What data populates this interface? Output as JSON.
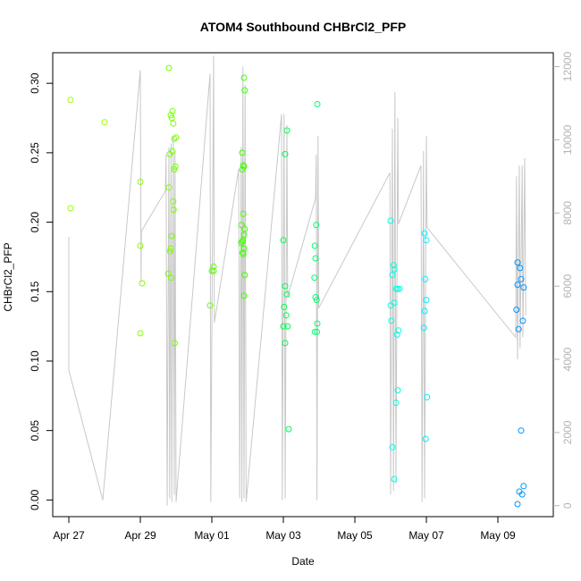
{
  "chart_data": {
    "type": "scatter",
    "title": "ATOM4 Southbound CHBrCl2_PFP",
    "xlabel": "Date",
    "ylabel": "CHBrCl2_PFP",
    "x_unit": "days since Apr 27",
    "xlim": [
      -0.45,
      13.55
    ],
    "ylim": [
      -0.012,
      0.322
    ],
    "y_ticks": [
      0.0,
      0.05,
      0.1,
      0.15,
      0.2,
      0.25,
      0.3
    ],
    "y_tick_labels": [
      "0.00",
      "0.05",
      "0.10",
      "0.15",
      "0.20",
      "0.25",
      "0.30"
    ],
    "x_ticks": [
      0,
      2,
      4,
      6,
      8,
      10,
      12
    ],
    "x_tick_labels": [
      "Apr 27",
      "Apr 29",
      "May 01",
      "May 03",
      "May 05",
      "May 07",
      "May 09"
    ],
    "y2_label": "",
    "y2lim": [
      -300,
      12380
    ],
    "y2_ticks": [
      0,
      2000,
      4000,
      6000,
      8000,
      10000,
      12000
    ],
    "y2_tick_labels": [
      "0",
      "2000",
      "4000",
      "6000",
      "8000",
      "10000",
      "12000"
    ],
    "point_series": {
      "name": "CHBrCl2_PFP",
      "points": [
        {
          "x": 0.05,
          "y": 0.288,
          "color": "#99ff00"
        },
        {
          "x": 0.05,
          "y": 0.21,
          "color": "#99ff00"
        },
        {
          "x": 1.0,
          "y": 0.272,
          "color": "#97ff00"
        },
        {
          "x": 2.0,
          "y": 0.229,
          "color": "#88ff00"
        },
        {
          "x": 2.0,
          "y": 0.183,
          "color": "#88ff00"
        },
        {
          "x": 2.05,
          "y": 0.156,
          "color": "#88ff00"
        },
        {
          "x": 2.0,
          "y": 0.12,
          "color": "#88ff00"
        },
        {
          "x": 2.8,
          "y": 0.311,
          "color": "#77ff00"
        },
        {
          "x": 2.85,
          "y": 0.277,
          "color": "#77ff00"
        },
        {
          "x": 2.9,
          "y": 0.28,
          "color": "#77ff00"
        },
        {
          "x": 2.88,
          "y": 0.275,
          "color": "#77ff00"
        },
        {
          "x": 2.92,
          "y": 0.271,
          "color": "#77ff00"
        },
        {
          "x": 2.95,
          "y": 0.26,
          "color": "#77ff00"
        },
        {
          "x": 3.0,
          "y": 0.261,
          "color": "#77ff00"
        },
        {
          "x": 2.9,
          "y": 0.251,
          "color": "#77ff00"
        },
        {
          "x": 2.82,
          "y": 0.249,
          "color": "#77ff00"
        },
        {
          "x": 2.98,
          "y": 0.24,
          "color": "#77ff00"
        },
        {
          "x": 2.95,
          "y": 0.238,
          "color": "#77ff00"
        },
        {
          "x": 2.8,
          "y": 0.225,
          "color": "#77ff00"
        },
        {
          "x": 2.92,
          "y": 0.215,
          "color": "#77ff00"
        },
        {
          "x": 2.93,
          "y": 0.209,
          "color": "#77ff00"
        },
        {
          "x": 2.88,
          "y": 0.19,
          "color": "#77ff00"
        },
        {
          "x": 2.85,
          "y": 0.181,
          "color": "#77ff00"
        },
        {
          "x": 2.83,
          "y": 0.179,
          "color": "#77ff00"
        },
        {
          "x": 2.78,
          "y": 0.163,
          "color": "#77ff00"
        },
        {
          "x": 2.86,
          "y": 0.16,
          "color": "#77ff00"
        },
        {
          "x": 2.96,
          "y": 0.113,
          "color": "#77ff00"
        },
        {
          "x": 4.05,
          "y": 0.168,
          "color": "#5eff00"
        },
        {
          "x": 4.0,
          "y": 0.165,
          "color": "#5eff00"
        },
        {
          "x": 4.05,
          "y": 0.165,
          "color": "#5eff00"
        },
        {
          "x": 3.95,
          "y": 0.14,
          "color": "#5eff00"
        },
        {
          "x": 4.9,
          "y": 0.304,
          "color": "#40ff00"
        },
        {
          "x": 4.92,
          "y": 0.295,
          "color": "#40ff00"
        },
        {
          "x": 4.85,
          "y": 0.25,
          "color": "#40ff00"
        },
        {
          "x": 4.88,
          "y": 0.241,
          "color": "#40ff00"
        },
        {
          "x": 4.85,
          "y": 0.238,
          "color": "#40ff00"
        },
        {
          "x": 4.9,
          "y": 0.24,
          "color": "#40ff00"
        },
        {
          "x": 4.88,
          "y": 0.206,
          "color": "#40ff00"
        },
        {
          "x": 4.83,
          "y": 0.198,
          "color": "#40ff00"
        },
        {
          "x": 4.92,
          "y": 0.195,
          "color": "#40ff00"
        },
        {
          "x": 4.9,
          "y": 0.191,
          "color": "#40ff00"
        },
        {
          "x": 4.87,
          "y": 0.187,
          "color": "#40ff00"
        },
        {
          "x": 4.85,
          "y": 0.186,
          "color": "#40ff00"
        },
        {
          "x": 4.82,
          "y": 0.185,
          "color": "#40ff00"
        },
        {
          "x": 4.9,
          "y": 0.181,
          "color": "#40ff00"
        },
        {
          "x": 4.86,
          "y": 0.178,
          "color": "#40ff00"
        },
        {
          "x": 4.88,
          "y": 0.177,
          "color": "#40ff00"
        },
        {
          "x": 4.92,
          "y": 0.162,
          "color": "#40ff00"
        },
        {
          "x": 4.9,
          "y": 0.147,
          "color": "#40ff00"
        },
        {
          "x": 6.1,
          "y": 0.266,
          "color": "#00ff4d"
        },
        {
          "x": 6.05,
          "y": 0.249,
          "color": "#00ff4d"
        },
        {
          "x": 6.0,
          "y": 0.187,
          "color": "#00ff4d"
        },
        {
          "x": 6.05,
          "y": 0.154,
          "color": "#00ff4d"
        },
        {
          "x": 6.1,
          "y": 0.148,
          "color": "#00ff4d"
        },
        {
          "x": 6.02,
          "y": 0.139,
          "color": "#00ff4d"
        },
        {
          "x": 6.08,
          "y": 0.133,
          "color": "#00ff4d"
        },
        {
          "x": 6.0,
          "y": 0.125,
          "color": "#00ff4d"
        },
        {
          "x": 6.12,
          "y": 0.125,
          "color": "#00ff4d"
        },
        {
          "x": 6.05,
          "y": 0.113,
          "color": "#00ff4d"
        },
        {
          "x": 6.15,
          "y": 0.051,
          "color": "#00ff4d"
        },
        {
          "x": 6.95,
          "y": 0.285,
          "color": "#00ff70"
        },
        {
          "x": 6.92,
          "y": 0.198,
          "color": "#00ff70"
        },
        {
          "x": 6.88,
          "y": 0.183,
          "color": "#00ff70"
        },
        {
          "x": 6.9,
          "y": 0.174,
          "color": "#00ff70"
        },
        {
          "x": 6.87,
          "y": 0.16,
          "color": "#00ff70"
        },
        {
          "x": 6.9,
          "y": 0.146,
          "color": "#00ff70"
        },
        {
          "x": 6.93,
          "y": 0.144,
          "color": "#00ff70"
        },
        {
          "x": 6.95,
          "y": 0.127,
          "color": "#00ff70"
        },
        {
          "x": 6.88,
          "y": 0.121,
          "color": "#00ff70"
        },
        {
          "x": 6.94,
          "y": 0.121,
          "color": "#00ff70"
        },
        {
          "x": 9.0,
          "y": 0.201,
          "color": "#00ffe0"
        },
        {
          "x": 9.08,
          "y": 0.169,
          "color": "#00ffe0"
        },
        {
          "x": 9.1,
          "y": 0.166,
          "color": "#00ffe0"
        },
        {
          "x": 9.05,
          "y": 0.162,
          "color": "#00ffe0"
        },
        {
          "x": 9.15,
          "y": 0.152,
          "color": "#00ffe0"
        },
        {
          "x": 9.2,
          "y": 0.152,
          "color": "#00ffe0"
        },
        {
          "x": 9.25,
          "y": 0.152,
          "color": "#00ffe0"
        },
        {
          "x": 9.1,
          "y": 0.142,
          "color": "#00ffe0"
        },
        {
          "x": 9.0,
          "y": 0.14,
          "color": "#00ffe0"
        },
        {
          "x": 9.02,
          "y": 0.129,
          "color": "#00ffe0"
        },
        {
          "x": 9.22,
          "y": 0.122,
          "color": "#00ffe0"
        },
        {
          "x": 9.18,
          "y": 0.119,
          "color": "#00ffe0"
        },
        {
          "x": 9.2,
          "y": 0.079,
          "color": "#00ffe0"
        },
        {
          "x": 9.15,
          "y": 0.07,
          "color": "#00ffe0"
        },
        {
          "x": 9.05,
          "y": 0.038,
          "color": "#00ffe0"
        },
        {
          "x": 9.1,
          "y": 0.015,
          "color": "#00ffe0"
        },
        {
          "x": 9.95,
          "y": 0.192,
          "color": "#00f0ff"
        },
        {
          "x": 10.0,
          "y": 0.187,
          "color": "#00f0ff"
        },
        {
          "x": 9.97,
          "y": 0.159,
          "color": "#00f0ff"
        },
        {
          "x": 10.0,
          "y": 0.144,
          "color": "#00f0ff"
        },
        {
          "x": 9.95,
          "y": 0.136,
          "color": "#00f0ff"
        },
        {
          "x": 9.93,
          "y": 0.124,
          "color": "#00f0ff"
        },
        {
          "x": 10.02,
          "y": 0.074,
          "color": "#00f0ff"
        },
        {
          "x": 9.98,
          "y": 0.044,
          "color": "#00f0ff"
        },
        {
          "x": 12.55,
          "y": 0.171,
          "color": "#0096ff"
        },
        {
          "x": 12.62,
          "y": 0.167,
          "color": "#0096ff"
        },
        {
          "x": 12.65,
          "y": 0.159,
          "color": "#0096ff"
        },
        {
          "x": 12.55,
          "y": 0.155,
          "color": "#0096ff"
        },
        {
          "x": 12.72,
          "y": 0.153,
          "color": "#0096ff"
        },
        {
          "x": 12.52,
          "y": 0.137,
          "color": "#0096ff"
        },
        {
          "x": 12.7,
          "y": 0.129,
          "color": "#0096ff"
        },
        {
          "x": 12.58,
          "y": 0.123,
          "color": "#0096ff"
        },
        {
          "x": 12.65,
          "y": 0.05,
          "color": "#0096ff"
        },
        {
          "x": 12.72,
          "y": 0.01,
          "color": "#0096ff"
        },
        {
          "x": 12.6,
          "y": 0.006,
          "color": "#0096ff"
        },
        {
          "x": 12.68,
          "y": 0.004,
          "color": "#0096ff"
        },
        {
          "x": 12.55,
          "y": -0.003,
          "color": "#0096ff"
        }
      ]
    },
    "line_series": {
      "name": "altitude trace (right axis)",
      "color": "#c8c8c8",
      "points": [
        [
          0.0,
          7350
        ],
        [
          0.0,
          3700
        ],
        [
          0.95,
          150
        ],
        [
          2.0,
          11900
        ],
        [
          2.02,
          6100
        ],
        [
          2.03,
          7500
        ],
        [
          2.7,
          8600
        ],
        [
          2.72,
          9600
        ],
        [
          2.75,
          0
        ],
        [
          2.8,
          9800
        ],
        [
          2.82,
          200
        ],
        [
          2.86,
          9900
        ],
        [
          2.88,
          100
        ],
        [
          2.92,
          10100
        ],
        [
          2.95,
          300
        ],
        [
          2.97,
          9700
        ],
        [
          3.0,
          100
        ],
        [
          3.95,
          11800
        ],
        [
          3.97,
          100
        ],
        [
          4.05,
          12300
        ],
        [
          4.07,
          5000
        ],
        [
          4.75,
          9200
        ],
        [
          4.78,
          200
        ],
        [
          4.82,
          9800
        ],
        [
          4.84,
          100
        ],
        [
          4.87,
          12000
        ],
        [
          4.9,
          200
        ],
        [
          4.93,
          11500
        ],
        [
          4.96,
          100
        ],
        [
          5.95,
          10700
        ],
        [
          5.97,
          150
        ],
        [
          6.02,
          10700
        ],
        [
          6.05,
          200
        ],
        [
          6.1,
          10400
        ],
        [
          6.12,
          5700
        ],
        [
          6.9,
          8400
        ],
        [
          6.92,
          9600
        ],
        [
          6.94,
          150
        ],
        [
          6.97,
          10100
        ],
        [
          6.99,
          5400
        ],
        [
          8.98,
          9100
        ],
        [
          9.0,
          300
        ],
        [
          9.05,
          10300
        ],
        [
          9.08,
          400
        ],
        [
          9.12,
          11300
        ],
        [
          9.15,
          600
        ],
        [
          9.2,
          10600
        ],
        [
          9.22,
          7700
        ],
        [
          9.85,
          9300
        ],
        [
          9.88,
          100
        ],
        [
          9.92,
          9700
        ],
        [
          9.95,
          200
        ],
        [
          10.0,
          10100
        ],
        [
          10.02,
          7600
        ],
        [
          12.5,
          4600
        ],
        [
          12.52,
          9000
        ],
        [
          12.55,
          4000
        ],
        [
          12.6,
          9300
        ],
        [
          12.62,
          4300
        ],
        [
          12.68,
          9300
        ],
        [
          12.7,
          4600
        ],
        [
          12.75,
          9500
        ],
        [
          12.78,
          5200
        ]
      ]
    }
  }
}
